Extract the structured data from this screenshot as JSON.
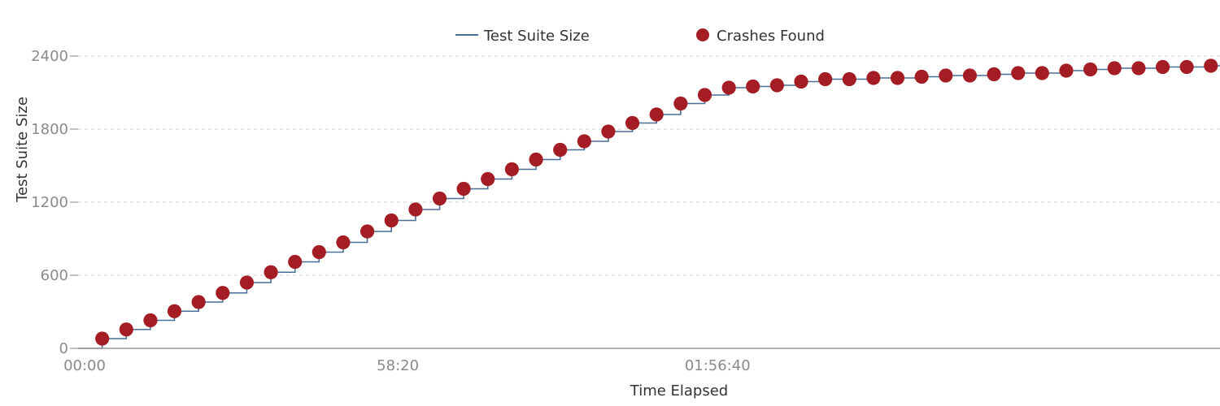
{
  "chart_data": {
    "type": "line",
    "title": "",
    "xlabel": "Time Elapsed",
    "ylabel": "Test Suite Size",
    "x_ticks": [
      {
        "value": 0,
        "label": "00:00"
      },
      {
        "value": 3500,
        "label": "58:20"
      },
      {
        "value": 7000,
        "label": "01:56:40"
      }
    ],
    "y_ticks": [
      0,
      600,
      1200,
      1800,
      2400
    ],
    "xlim": [
      0,
      12500
    ],
    "ylim": [
      0,
      2400
    ],
    "grid": true,
    "legend_position": "top-center",
    "series": [
      {
        "name": "Test Suite Size",
        "type": "step",
        "color": "#4a6f96",
        "x": [
          0,
          264,
          528,
          792,
          1055,
          1319,
          1583,
          1847,
          2111,
          2375,
          2638,
          2902,
          3166,
          3430,
          3694,
          3958,
          4221,
          4485,
          4749,
          5013,
          5277,
          5541,
          5804,
          6068,
          6332,
          6596,
          6860,
          7124,
          7387,
          7651,
          7915,
          8179,
          8443,
          8707,
          8970,
          9234,
          9498,
          9762,
          10026,
          10290,
          10553,
          10817,
          11081,
          11345,
          11609,
          11873,
          12136,
          12400,
          12500
        ],
        "y": [
          0,
          80,
          155,
          230,
          305,
          380,
          455,
          540,
          625,
          710,
          790,
          870,
          960,
          1050,
          1140,
          1230,
          1310,
          1390,
          1470,
          1550,
          1630,
          1700,
          1780,
          1850,
          1920,
          2010,
          2080,
          2140,
          2150,
          2160,
          2190,
          2210,
          2210,
          2220,
          2220,
          2230,
          2240,
          2240,
          2250,
          2260,
          2260,
          2280,
          2290,
          2300,
          2300,
          2310,
          2310,
          2320,
          2320
        ]
      },
      {
        "name": "Crashes Found",
        "type": "scatter",
        "color": "#a51d24",
        "x": [
          264,
          528,
          792,
          1055,
          1319,
          1583,
          1847,
          2111,
          2375,
          2638,
          2902,
          3166,
          3430,
          3694,
          3958,
          4221,
          4485,
          4749,
          5013,
          5277,
          5541,
          5804,
          6068,
          6332,
          6596,
          6860,
          7124,
          7387,
          7651,
          7915,
          8179,
          8443,
          8707,
          8970,
          9234,
          9498,
          9762,
          10026,
          10290,
          10553,
          10817,
          11081,
          11345,
          11609,
          11873,
          12136,
          12400
        ],
        "y": [
          80,
          155,
          230,
          305,
          380,
          455,
          540,
          625,
          710,
          790,
          870,
          960,
          1050,
          1140,
          1230,
          1310,
          1390,
          1470,
          1550,
          1630,
          1700,
          1780,
          1850,
          1920,
          2010,
          2080,
          2140,
          2150,
          2160,
          2190,
          2210,
          2210,
          2220,
          2220,
          2230,
          2240,
          2240,
          2250,
          2260,
          2260,
          2280,
          2290,
          2300,
          2300,
          2310,
          2310,
          2320
        ]
      }
    ]
  }
}
